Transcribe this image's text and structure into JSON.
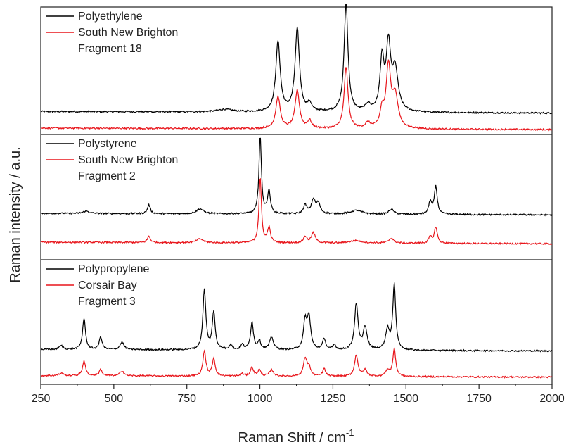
{
  "chart_data": {
    "type": "line",
    "xlabel": "Raman Shift / cm",
    "xlabel_superscript": "-1",
    "ylabel": "Raman intensity / a.u.",
    "xlim": [
      250,
      2000
    ],
    "xticks": [
      250,
      500,
      750,
      1000,
      1250,
      1500,
      1750,
      2000
    ],
    "xtick_labels": [
      "250",
      "500",
      "750",
      "1000",
      "1250",
      "1500",
      "1750",
      "2000"
    ],
    "colors": {
      "reference": "#000000",
      "sample": "#e8151b"
    },
    "panels": [
      {
        "legend": [
          {
            "label": "Polyethylene",
            "color": "#000000"
          },
          {
            "label": "South New Brighton",
            "color": "#e8151b"
          },
          {
            "label": "Fragment 18",
            "color": ""
          }
        ],
        "series": [
          {
            "name": "Polyethylene",
            "color": "#000000",
            "baseline": 0.18,
            "peaks": [
              [
                880,
                0.02,
                30
              ],
              [
                1062,
                0.55,
                9
              ],
              [
                1128,
                0.65,
                9
              ],
              [
                1170,
                0.06,
                8
              ],
              [
                1295,
                0.85,
                8
              ],
              [
                1370,
                0.05,
                10
              ],
              [
                1418,
                0.4,
                8
              ],
              [
                1440,
                0.5,
                9
              ],
              [
                1463,
                0.32,
                12
              ]
            ]
          },
          {
            "name": "South New Brighton",
            "color": "#e8151b",
            "baseline": 0.05,
            "peaks": [
              [
                1062,
                0.25,
                9
              ],
              [
                1128,
                0.3,
                9
              ],
              [
                1170,
                0.06,
                8
              ],
              [
                1295,
                0.48,
                8
              ],
              [
                1370,
                0.04,
                10
              ],
              [
                1418,
                0.13,
                8
              ],
              [
                1440,
                0.48,
                9
              ],
              [
                1463,
                0.25,
                12
              ]
            ]
          }
        ]
      },
      {
        "legend": [
          {
            "label": "Polystyrene",
            "color": "#000000"
          },
          {
            "label": "South New Brighton",
            "color": "#e8151b"
          },
          {
            "label": "Fragment 2",
            "color": ""
          }
        ],
        "series": [
          {
            "name": "Polystyrene",
            "color": "#000000",
            "baseline": 0.37,
            "peaks": [
              [
                405,
                0.02,
                12
              ],
              [
                620,
                0.07,
                6
              ],
              [
                795,
                0.04,
                14
              ],
              [
                1001,
                0.62,
                5
              ],
              [
                1031,
                0.18,
                6
              ],
              [
                1155,
                0.07,
                7
              ],
              [
                1183,
                0.11,
                8
              ],
              [
                1200,
                0.08,
                8
              ],
              [
                1330,
                0.03,
                25
              ],
              [
                1450,
                0.04,
                10
              ],
              [
                1583,
                0.1,
                6
              ],
              [
                1602,
                0.22,
                6
              ]
            ]
          },
          {
            "name": "South New Brighton",
            "color": "#e8151b",
            "baseline": 0.14,
            "peaks": [
              [
                620,
                0.05,
                6
              ],
              [
                795,
                0.03,
                14
              ],
              [
                1001,
                0.52,
                5
              ],
              [
                1031,
                0.12,
                6
              ],
              [
                1155,
                0.05,
                7
              ],
              [
                1183,
                0.08,
                8
              ],
              [
                1330,
                0.02,
                25
              ],
              [
                1450,
                0.04,
                10
              ],
              [
                1583,
                0.05,
                6
              ],
              [
                1602,
                0.13,
                6
              ]
            ]
          }
        ]
      },
      {
        "legend": [
          {
            "label": "Polypropylene",
            "color": "#000000"
          },
          {
            "label": "Corsair Bay",
            "color": "#e8151b"
          },
          {
            "label": "Fragment 3",
            "color": ""
          }
        ],
        "series": [
          {
            "name": "Polypropylene",
            "color": "#000000",
            "baseline": 0.28,
            "peaks": [
              [
                320,
                0.03,
                8
              ],
              [
                398,
                0.25,
                6
              ],
              [
                455,
                0.1,
                6
              ],
              [
                528,
                0.06,
                8
              ],
              [
                810,
                0.48,
                6
              ],
              [
                842,
                0.3,
                6
              ],
              [
                900,
                0.04,
                6
              ],
              [
                940,
                0.04,
                6
              ],
              [
                973,
                0.22,
                6
              ],
              [
                998,
                0.07,
                6
              ],
              [
                1040,
                0.1,
                8
              ],
              [
                1155,
                0.22,
                7
              ],
              [
                1168,
                0.25,
                7
              ],
              [
                1220,
                0.09,
                6
              ],
              [
                1255,
                0.04,
                6
              ],
              [
                1330,
                0.37,
                7
              ],
              [
                1360,
                0.18,
                8
              ],
              [
                1437,
                0.16,
                8
              ],
              [
                1460,
                0.52,
                6
              ]
            ]
          },
          {
            "name": "Corsair Bay",
            "color": "#e8151b",
            "baseline": 0.07,
            "peaks": [
              [
                320,
                0.02,
                8
              ],
              [
                398,
                0.12,
                6
              ],
              [
                455,
                0.05,
                6
              ],
              [
                528,
                0.04,
                8
              ],
              [
                810,
                0.2,
                6
              ],
              [
                842,
                0.14,
                6
              ],
              [
                940,
                0.02,
                6
              ],
              [
                973,
                0.07,
                6
              ],
              [
                998,
                0.05,
                6
              ],
              [
                1040,
                0.05,
                8
              ],
              [
                1155,
                0.14,
                7
              ],
              [
                1168,
                0.07,
                7
              ],
              [
                1220,
                0.06,
                6
              ],
              [
                1330,
                0.17,
                7
              ],
              [
                1360,
                0.05,
                8
              ],
              [
                1437,
                0.05,
                8
              ],
              [
                1460,
                0.22,
                6
              ]
            ]
          }
        ]
      }
    ]
  }
}
